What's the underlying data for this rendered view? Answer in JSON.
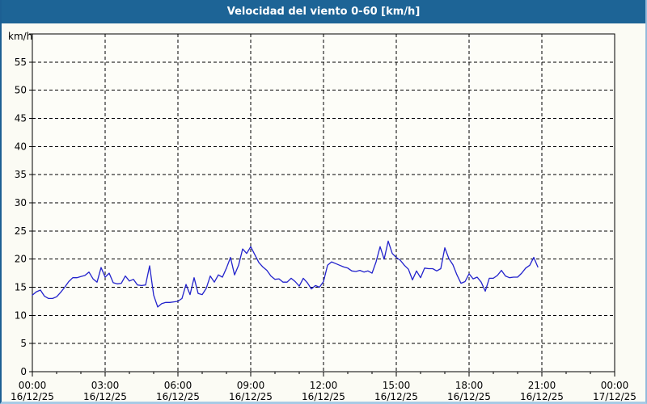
{
  "window": {
    "title": "Velocidad del viento 0-60 [km/h]"
  },
  "colors": {
    "titlebar_bg": "#1d6496",
    "titlebar_text": "#ffffff",
    "window_bg": "#fbfbf4",
    "plot_bg": "#fdfdf8",
    "plot_border": "#000000",
    "gridline": "#000000",
    "line": "#2222cc",
    "tick_text": "#000000"
  },
  "chart_data": {
    "type": "line",
    "title": "Velocidad del viento 0-60 [km/h]",
    "ylabel": "km/h",
    "xlabel": "",
    "grid": "dashed",
    "legend_position": "none",
    "y_axis": {
      "min": 0,
      "max": 60,
      "tick_step": 5,
      "unit": "km/h",
      "tick_labels": [
        "0",
        "5",
        "10",
        "15",
        "20",
        "25",
        "30",
        "35",
        "40",
        "45",
        "50",
        "55"
      ]
    },
    "x_axis": {
      "start_hour": 0,
      "end_hour": 24,
      "major_step_hours": 3,
      "minor_step_hours": 1,
      "ticks": [
        {
          "hour": 0,
          "time": "00:00",
          "date": "16/12/25"
        },
        {
          "hour": 3,
          "time": "03:00",
          "date": "16/12/25"
        },
        {
          "hour": 6,
          "time": "06:00",
          "date": "16/12/25"
        },
        {
          "hour": 9,
          "time": "09:00",
          "date": "16/12/25"
        },
        {
          "hour": 12,
          "time": "12:00",
          "date": "16/12/25"
        },
        {
          "hour": 15,
          "time": "15:00",
          "date": "16/12/25"
        },
        {
          "hour": 18,
          "time": "18:00",
          "date": "16/12/25"
        },
        {
          "hour": 21,
          "time": "21:00",
          "date": "16/12/25"
        },
        {
          "hour": 24,
          "time": "00:00",
          "date": "17/12/25"
        }
      ]
    },
    "series": [
      {
        "name": "Velocidad del viento",
        "color": "#2222cc",
        "start_hour": 0,
        "step_minutes": 10,
        "values": [
          13.6,
          14.2,
          14.5,
          13.4,
          13.0,
          13.0,
          13.3,
          14.1,
          15.0,
          16.0,
          16.7,
          16.7,
          16.9,
          17.1,
          17.7,
          16.5,
          15.9,
          18.5,
          16.8,
          17.5,
          15.8,
          15.6,
          15.7,
          17.0,
          16.1,
          16.4,
          15.4,
          15.3,
          15.4,
          18.8,
          13.6,
          11.5,
          12.1,
          12.3,
          12.3,
          12.4,
          12.5,
          13.0,
          15.5,
          13.7,
          16.7,
          13.9,
          13.7,
          14.8,
          17.0,
          15.9,
          17.2,
          16.8,
          18.4,
          20.3,
          17.2,
          18.9,
          21.8,
          21.0,
          22.2,
          20.8,
          19.4,
          18.6,
          18.0,
          17.0,
          16.4,
          16.5,
          15.9,
          15.9,
          16.6,
          16.0,
          15.2,
          16.6,
          15.8,
          14.7,
          15.3,
          15.0,
          16.0,
          18.9,
          19.5,
          19.2,
          18.9,
          18.6,
          18.4,
          17.9,
          17.8,
          18.0,
          17.7,
          17.9,
          17.5,
          19.5,
          22.2,
          20.0,
          23.2,
          21.0,
          20.3,
          19.8,
          18.9,
          18.2,
          16.3,
          17.9,
          16.7,
          18.4,
          18.3,
          18.3,
          17.9,
          18.3,
          22.0,
          20.1,
          19.0,
          17.2,
          15.7,
          16.0,
          17.4,
          16.5,
          16.8,
          15.9,
          14.3,
          16.6,
          16.6,
          17.1,
          18.0,
          17.0,
          16.7,
          16.8,
          16.8,
          17.5,
          18.4,
          18.9,
          20.3,
          18.6
        ]
      }
    ]
  }
}
